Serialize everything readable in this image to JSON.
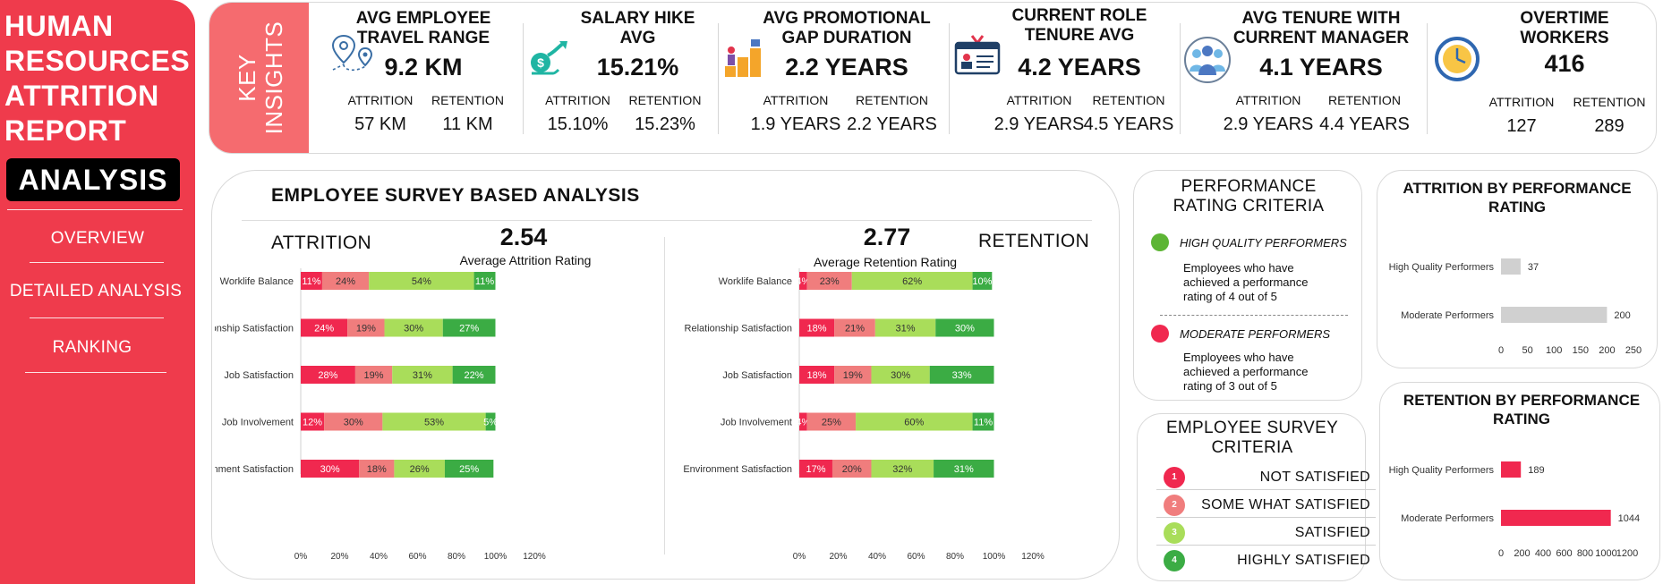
{
  "sidebar": {
    "title_lines": [
      "HUMAN",
      "RESOURCES",
      "ATTRITION",
      "REPORT"
    ],
    "active_nav": "ANALYSIS",
    "nav_items": [
      "OVERVIEW",
      "DETAILED ANALYSIS",
      "RANKING"
    ],
    "bg_color": "#ef3b4c"
  },
  "key_insights_label": [
    "KEY",
    "INSIGHTS"
  ],
  "kpis": [
    {
      "title_lines": [
        "AVG EMPLOYEE",
        "TRAVEL RANGE"
      ],
      "value": "9.2 KM",
      "attrition_label": "ATTRITION",
      "retention_label": "RETENTION",
      "attrition": "57 KM",
      "retention": "11 KM",
      "icon": "map-pin-route-icon"
    },
    {
      "title_lines": [
        "SALARY HIKE",
        "AVG"
      ],
      "value": "15.21%",
      "attrition_label": "ATTRITION",
      "retention_label": "RETENTION",
      "attrition": "15.10%",
      "retention": "15.23%",
      "icon": "salary-growth-icon"
    },
    {
      "title_lines": [
        "AVG PROMOTIONAL",
        "GAP DURATION"
      ],
      "value": "2.2 YEARS",
      "attrition_label": "ATTRITION",
      "retention_label": "RETENTION",
      "attrition": "1.9 YEARS",
      "retention": "2.2 YEARS",
      "icon": "career-stairs-icon"
    },
    {
      "title_lines": [
        "CURRENT ROLE",
        "TENURE AVG"
      ],
      "value": "4.2 YEARS",
      "attrition_label": "ATTRITION",
      "retention_label": "RETENTION",
      "attrition": "2.9 YEARS",
      "retention": "4.5 YEARS",
      "icon": "id-badge-icon"
    },
    {
      "title_lines": [
        "AVG TENURE WITH",
        "CURRENT MANAGER"
      ],
      "value": "4.1 YEARS",
      "attrition_label": "ATTRITION",
      "retention_label": "RETENTION",
      "attrition": "2.9 YEARS",
      "retention": "4.4 YEARS",
      "icon": "team-icon"
    },
    {
      "title_lines": [
        "OVERTIME",
        "WORKERS"
      ],
      "value": "416",
      "attrition_label": "ATTRITION",
      "retention_label": "RETENTION",
      "attrition": "127",
      "retention": "289",
      "icon": "clock-icon"
    }
  ],
  "survey": {
    "title": "EMPLOYEE SURVEY BASED ANALYSIS",
    "attrition_label": "ATTRITION",
    "retention_label": "RETENTION",
    "attrition_avg": "2.54",
    "attrition_avg_caption": "Average Attrition Rating",
    "retention_avg": "2.77",
    "retention_avg_caption": "Average Retention Rating"
  },
  "performance_criteria": {
    "title_lines": [
      "PERFORMANCE",
      "RATING CRITERIA"
    ],
    "items": [
      {
        "label": "HIGH QUALITY PERFORMERS",
        "desc_lines": [
          "Employees who have",
          "achieved a performance",
          "rating of 4 out of 5"
        ],
        "color": "#5db535"
      },
      {
        "label": "MODERATE PERFORMERS",
        "desc_lines": [
          "Employees who have",
          "achieved a performance",
          "rating of 3 out of 5"
        ],
        "color": "#f0284f"
      }
    ]
  },
  "survey_criteria": {
    "title_lines": [
      "EMPLOYEE SURVEY",
      "CRITERIA"
    ],
    "items": [
      {
        "num": "1",
        "label": "NOT SATISFIED",
        "color": "#f0284f"
      },
      {
        "num": "2",
        "label": "SOME WHAT SATISFIED",
        "color": "#f07d7d"
      },
      {
        "num": "3",
        "label": "SATISFIED",
        "color": "#a9dd5a"
      },
      {
        "num": "4",
        "label": "HIGHLY SATISFIED",
        "color": "#3bac44"
      }
    ]
  },
  "chart_data": [
    {
      "type": "bar",
      "stacked": true,
      "orientation": "horizontal",
      "title": "ATTRITION",
      "categories": [
        "Worklife Balance",
        "Relationship Satisfaction",
        "Job Satisfaction",
        "Job Involvement",
        "Environment Satisfaction"
      ],
      "series": [
        {
          "values": [
            11,
            24,
            28,
            12,
            30
          ],
          "color": "#f0284f"
        },
        {
          "values": [
            24,
            19,
            19,
            30,
            18
          ],
          "color": "#f07d7d"
        },
        {
          "values": [
            54,
            30,
            31,
            53,
            26
          ],
          "color": "#a9dd5a"
        },
        {
          "values": [
            11,
            27,
            22,
            5,
            25
          ],
          "color": "#3bac44"
        }
      ],
      "xlim": [
        0,
        120
      ],
      "xticks": [
        "0%",
        "20%",
        "40%",
        "60%",
        "80%",
        "100%",
        "120%"
      ],
      "grid": false
    },
    {
      "type": "bar",
      "stacked": true,
      "orientation": "horizontal",
      "title": "RETENTION",
      "categories": [
        "Worklife Balance",
        "Relationship Satisfaction",
        "Job Satisfaction",
        "Job Involvement",
        "Environment Satisfaction"
      ],
      "series": [
        {
          "values": [
            4,
            18,
            18,
            4,
            17
          ],
          "color": "#f0284f"
        },
        {
          "values": [
            23,
            21,
            19,
            25,
            20
          ],
          "color": "#f07d7d"
        },
        {
          "values": [
            62,
            31,
            30,
            60,
            32
          ],
          "color": "#a9dd5a"
        },
        {
          "values": [
            10,
            30,
            33,
            11,
            31
          ],
          "color": "#3bac44"
        }
      ],
      "xlim": [
        0,
        120
      ],
      "xticks": [
        "0%",
        "20%",
        "40%",
        "60%",
        "80%",
        "100%",
        "120%"
      ],
      "grid": false
    },
    {
      "type": "bar",
      "orientation": "horizontal",
      "title": "ATTRITION BY PERFORMANCE RATING",
      "categories": [
        "High Quality Performers",
        "Moderate Performers"
      ],
      "values": [
        37,
        200
      ],
      "color": "#d0d0d0",
      "xlim": [
        0,
        250
      ],
      "xticks": [
        "0",
        "50",
        "100",
        "150",
        "200",
        "250"
      ]
    },
    {
      "type": "bar",
      "orientation": "horizontal",
      "title": "RETENTION BY PERFORMANCE RATING",
      "categories": [
        "High Quality Performers",
        "Moderate Performers"
      ],
      "values": [
        189,
        1044
      ],
      "color": "#f0284f",
      "xlim": [
        0,
        1200
      ],
      "xticks": [
        "0",
        "200",
        "400",
        "600",
        "800",
        "1000",
        "1200"
      ]
    }
  ]
}
